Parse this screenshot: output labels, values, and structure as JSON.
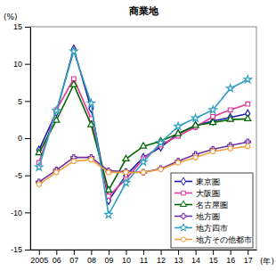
{
  "chart_data": {
    "type": "line",
    "title": "商業地",
    "y_label": "(%)",
    "x_label": "(年)",
    "categories": [
      "2005",
      "06",
      "07",
      "08",
      "09",
      "10",
      "11",
      "12",
      "13",
      "14",
      "15",
      "16",
      "17"
    ],
    "series": [
      {
        "name": "東京圏",
        "color": "#1a1aa8",
        "marker": "diamond",
        "values": [
          -1.6,
          3.5,
          12.0,
          4.0,
          -8.4,
          -5.0,
          -2.6,
          -1.2,
          0.6,
          1.7,
          2.3,
          2.8,
          3.3
        ]
      },
      {
        "name": "大阪圏",
        "color": "#e0399a",
        "marker": "square",
        "values": [
          -3.3,
          3.8,
          8.0,
          2.6,
          -7.8,
          -5.5,
          -2.8,
          -0.9,
          0.3,
          1.5,
          2.9,
          3.8,
          4.6
        ]
      },
      {
        "name": "名古屋圏",
        "color": "#006600",
        "marker": "triangle",
        "values": [
          -2.0,
          2.4,
          7.2,
          1.8,
          -7.0,
          -2.8,
          -1.1,
          -0.4,
          0.6,
          1.7,
          2.1,
          2.5,
          2.6
        ]
      },
      {
        "name": "地方圏",
        "color": "#7030a0",
        "marker": "cross",
        "values": [
          -5.9,
          -4.3,
          -2.6,
          -2.6,
          -4.4,
          -4.5,
          -4.6,
          -4.1,
          -3.1,
          -2.2,
          -1.5,
          -1.0,
          -0.5
        ]
      },
      {
        "name": "地方四市",
        "color": "#31a0c0",
        "marker": "star",
        "values": [
          -3.9,
          3.7,
          11.7,
          4.7,
          -10.3,
          -6.0,
          -3.2,
          -0.6,
          1.6,
          2.7,
          3.8,
          6.7,
          7.9
        ]
      },
      {
        "name": "地方その他都市",
        "color": "#f0a040",
        "marker": "circle",
        "values": [
          -6.2,
          -4.6,
          -3.1,
          -2.9,
          -4.6,
          -4.6,
          -4.6,
          -4.2,
          -3.3,
          -2.6,
          -1.8,
          -1.4,
          -1.1
        ]
      }
    ],
    "ylim": [
      -15,
      15
    ],
    "yticks": [
      -15,
      -10,
      -5,
      0,
      5,
      10,
      15
    ],
    "grid": false,
    "legend": "lower right"
  }
}
